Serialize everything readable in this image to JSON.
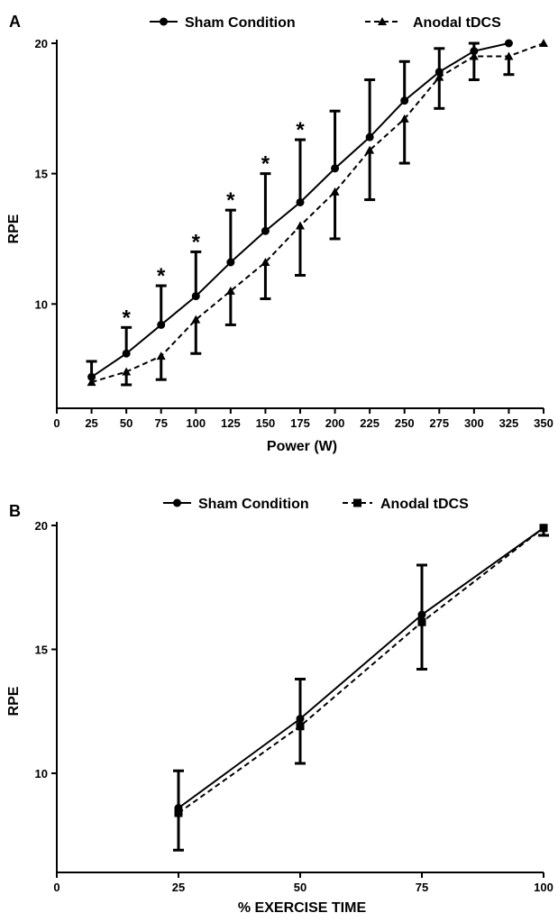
{
  "chart_data": [
    {
      "panel": "A",
      "type": "line",
      "xlabel": "Power (W)",
      "ylabel": "RPE",
      "xlim": [
        0,
        350
      ],
      "ylim": [
        6,
        20
      ],
      "xticks": [
        "0",
        "25",
        "50",
        "75",
        "100",
        "125",
        "150",
        "175",
        "200",
        "225",
        "250",
        "275",
        "300",
        "325",
        "350"
      ],
      "yticks": [
        "10",
        "15",
        "20"
      ],
      "legend": "top",
      "grid": false,
      "series": [
        {
          "name": "Sham Condition",
          "marker": "circle",
          "line": "solid",
          "x": [
            25,
            50,
            75,
            100,
            125,
            150,
            175,
            200,
            225,
            250,
            275,
            300,
            325
          ],
          "y": [
            7.2,
            8.1,
            9.2,
            10.3,
            11.6,
            12.8,
            13.9,
            15.2,
            16.4,
            17.8,
            18.9,
            19.7,
            20.0
          ],
          "err_upper": [
            7.8,
            9.1,
            10.7,
            12.0,
            13.6,
            15.0,
            16.3,
            17.4,
            18.6,
            19.3,
            19.8,
            20.0,
            null
          ],
          "err_lower": [
            null,
            null,
            null,
            null,
            null,
            null,
            null,
            null,
            null,
            null,
            null,
            null,
            null
          ]
        },
        {
          "name": "Anodal tDCS",
          "marker": "triangle",
          "line": "dashed",
          "x": [
            25,
            50,
            75,
            100,
            125,
            150,
            175,
            200,
            225,
            250,
            275,
            300,
            325,
            350
          ],
          "y": [
            7.0,
            7.4,
            8.0,
            9.4,
            10.5,
            11.6,
            13.0,
            14.3,
            15.9,
            17.1,
            18.7,
            19.5,
            19.5,
            20.0
          ],
          "err_upper": [
            null,
            null,
            null,
            null,
            null,
            null,
            null,
            null,
            null,
            null,
            null,
            null,
            null,
            null
          ],
          "err_lower": [
            null,
            6.9,
            7.1,
            8.1,
            9.2,
            10.2,
            11.1,
            12.5,
            14.0,
            15.4,
            17.5,
            18.6,
            18.8,
            null
          ]
        }
      ],
      "annotations": [
        {
          "text": "*",
          "x": 50,
          "y": 9.1
        },
        {
          "text": "*",
          "x": 75,
          "y": 10.7
        },
        {
          "text": "*",
          "x": 100,
          "y": 12.0
        },
        {
          "text": "*",
          "x": 125,
          "y": 13.6
        },
        {
          "text": "*",
          "x": 150,
          "y": 15.0
        },
        {
          "text": "*",
          "x": 175,
          "y": 16.3
        }
      ]
    },
    {
      "panel": "B",
      "type": "line",
      "xlabel": "% EXERCISE TIME",
      "ylabel": "RPE",
      "xlim": [
        0,
        100
      ],
      "ylim": [
        6,
        20
      ],
      "xticks": [
        "0",
        "25",
        "50",
        "75",
        "100"
      ],
      "yticks": [
        "10",
        "15",
        "20"
      ],
      "legend": "top",
      "grid": false,
      "series": [
        {
          "name": "Sham Condition",
          "marker": "circle",
          "line": "solid",
          "x": [
            25,
            50,
            75,
            100
          ],
          "y": [
            8.6,
            12.2,
            16.4,
            19.9
          ],
          "err_upper": [
            10.1,
            13.8,
            18.4,
            null
          ],
          "err_lower": [
            null,
            null,
            null,
            null
          ]
        },
        {
          "name": "Anodal tDCS",
          "marker": "square",
          "line": "dashed",
          "x": [
            25,
            50,
            75,
            100
          ],
          "y": [
            8.4,
            11.9,
            16.1,
            19.9
          ],
          "err_upper": [
            null,
            null,
            null,
            null
          ],
          "err_lower": [
            6.9,
            10.4,
            14.2,
            19.6
          ]
        }
      ],
      "annotations": []
    }
  ]
}
